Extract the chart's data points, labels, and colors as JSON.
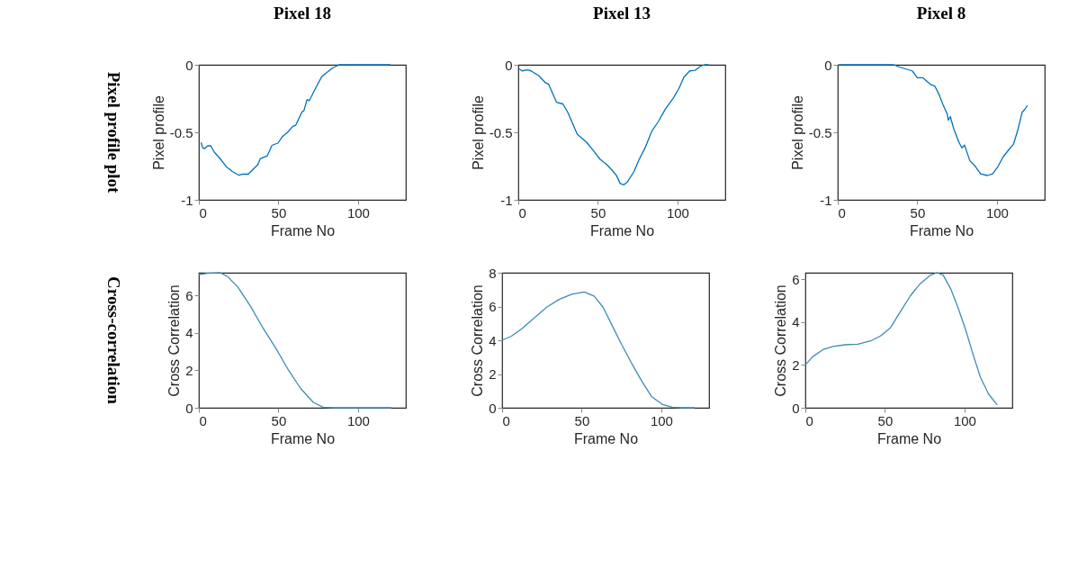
{
  "chart_data": [
    {
      "type": "line",
      "title": "Pixel 18",
      "annotations": [
        "Pixel profile plot"
      ],
      "xlabel": "Frame No",
      "ylabel": "Pixel profile",
      "xlim": [
        0,
        130
      ],
      "xticks": [
        0,
        50,
        100
      ],
      "ylim": [
        -1,
        0
      ],
      "yticks": [
        -1,
        -0.5,
        0
      ],
      "series": [
        {
          "color": "#0072bd",
          "x": [
            1.4,
            2.4,
            3.7,
            5.5,
            7.5,
            9.7,
            13,
            17.4,
            21,
            25,
            27.6,
            31,
            34.4,
            37,
            38.7,
            43,
            46,
            49.7,
            52.3,
            55.7,
            59,
            60.8,
            64.7,
            66,
            68,
            69.3,
            72,
            74.4,
            77.3,
            80.4,
            83.8,
            88,
            120.4
          ],
          "values": [
            -0.575,
            -0.616,
            -0.62,
            -0.6,
            -0.6,
            -0.647,
            -0.69,
            -0.756,
            -0.79,
            -0.817,
            -0.809,
            -0.81,
            -0.77,
            -0.74,
            -0.694,
            -0.674,
            -0.595,
            -0.58,
            -0.534,
            -0.5,
            -0.456,
            -0.448,
            -0.35,
            -0.339,
            -0.257,
            -0.267,
            -0.205,
            -0.148,
            -0.086,
            -0.057,
            -0.025,
            0,
            0
          ]
        }
      ]
    },
    {
      "type": "line",
      "title": "Pixel 13",
      "xlabel": "Frame No",
      "ylabel": "Pixel profile",
      "xlim": [
        0,
        130
      ],
      "xticks": [
        0,
        50,
        100
      ],
      "ylim": [
        -1,
        0
      ],
      "yticks": [
        -1,
        -0.5,
        0
      ],
      "series": [
        {
          "color": "#0072bd",
          "x": [
            0.7,
            2.4,
            5.5,
            8,
            13,
            17,
            19,
            24,
            28,
            31,
            37,
            43,
            48,
            51.4,
            55.7,
            59.6,
            61.7,
            64,
            66.3,
            68.5,
            72.7,
            76,
            79.6,
            83.8,
            88,
            92.3,
            97.4,
            100.9,
            104,
            107.7,
            111,
            114.5,
            117,
            119.6
          ],
          "values": [
            -0.03,
            -0.045,
            -0.037,
            -0.045,
            -0.082,
            -0.133,
            -0.144,
            -0.277,
            -0.29,
            -0.35,
            -0.513,
            -0.575,
            -0.647,
            -0.7,
            -0.74,
            -0.79,
            -0.821,
            -0.879,
            -0.889,
            -0.868,
            -0.79,
            -0.698,
            -0.616,
            -0.493,
            -0.42,
            -0.329,
            -0.246,
            -0.175,
            -0.092,
            -0.045,
            -0.041,
            -0.01,
            0,
            0
          ]
        }
      ]
    },
    {
      "type": "line",
      "title": "Pixel 8",
      "xlabel": "Frame No",
      "ylabel": "Pixel profile",
      "xlim": [
        0,
        130
      ],
      "xticks": [
        0,
        50,
        100
      ],
      "ylim": [
        -1,
        0
      ],
      "yticks": [
        -1,
        -0.5,
        0
      ],
      "series": [
        {
          "color": "#0072bd",
          "x": [
            0.5,
            35,
            41,
            46.8,
            50,
            53.5,
            58.6,
            61,
            63.6,
            66,
            68.7,
            69.5,
            70.7,
            72.9,
            76.3,
            78,
            79.6,
            83,
            86.4,
            89.7,
            94,
            97.3,
            100.7,
            104,
            107.4,
            110.4,
            113.3,
            115.8,
            117.5,
            119.2
          ],
          "values": [
            0,
            0,
            -0.025,
            -0.045,
            -0.096,
            -0.096,
            -0.148,
            -0.158,
            -0.219,
            -0.291,
            -0.363,
            -0.41,
            -0.383,
            -0.475,
            -0.578,
            -0.615,
            -0.594,
            -0.711,
            -0.752,
            -0.807,
            -0.82,
            -0.807,
            -0.752,
            -0.68,
            -0.63,
            -0.588,
            -0.475,
            -0.352,
            -0.33,
            -0.3
          ]
        }
      ]
    },
    {
      "type": "line",
      "annotations": [
        "Cross-correlation"
      ],
      "xlabel": "Frame No",
      "ylabel": "Cross Correlation",
      "xlim": [
        0,
        130
      ],
      "xticks": [
        0,
        50,
        100
      ],
      "ylim": [
        0,
        7.2
      ],
      "yticks": [
        0,
        2,
        4,
        6
      ],
      "series": [
        {
          "color": "#3d8db5",
          "x": [
            0,
            5.5,
            13.4,
            18,
            24.5,
            32.4,
            40.3,
            48,
            56,
            64,
            71.9,
            78,
            84.5,
            121
          ],
          "values": [
            7.1,
            7.17,
            7.2,
            7.0,
            6.44,
            5.42,
            4.25,
            3.22,
            2.05,
            1.02,
            0.29,
            0.03,
            0,
            0
          ]
        }
      ]
    },
    {
      "type": "line",
      "xlabel": "Frame No",
      "ylabel": "Cross Correlation",
      "xlim": [
        0,
        130
      ],
      "xticks": [
        0,
        50,
        100
      ],
      "ylim": [
        0,
        8
      ],
      "yticks": [
        0,
        2,
        4,
        6,
        8
      ],
      "series": [
        {
          "color": "#3d8db5",
          "x": [
            0,
            5.8,
            12,
            20,
            28,
            35.8,
            43.7,
            51.6,
            57.9,
            63.4,
            69,
            75,
            81.5,
            87.9,
            94,
            100.5,
            106.8,
            113,
            121
          ],
          "values": [
            4.0,
            4.24,
            4.65,
            5.31,
            5.96,
            6.42,
            6.73,
            6.86,
            6.61,
            5.96,
            4.9,
            3.76,
            2.61,
            1.55,
            0.65,
            0.21,
            0.03,
            0,
            0
          ]
        }
      ]
    },
    {
      "type": "line",
      "xlabel": "Frame No",
      "ylabel": "Cross Correlation",
      "xlim": [
        0,
        130
      ],
      "xticks": [
        0,
        50,
        100
      ],
      "ylim": [
        0,
        6.3
      ],
      "yticks": [
        0,
        2,
        4,
        6
      ],
      "series": [
        {
          "color": "#3d8db5",
          "x": [
            0,
            4.7,
            11,
            17.3,
            25.2,
            33,
            41,
            47.2,
            53.5,
            60,
            66,
            72.4,
            78.7,
            82.7,
            86.6,
            91.3,
            96,
            100.8,
            105.5,
            110,
            115,
            120.5
          ],
          "values": [
            2.0,
            2.39,
            2.71,
            2.86,
            2.94,
            2.97,
            3.12,
            3.35,
            3.74,
            4.52,
            5.23,
            5.81,
            6.19,
            6.3,
            6.19,
            5.55,
            4.65,
            3.61,
            2.45,
            1.42,
            0.65,
            0.13
          ]
        }
      ]
    }
  ]
}
